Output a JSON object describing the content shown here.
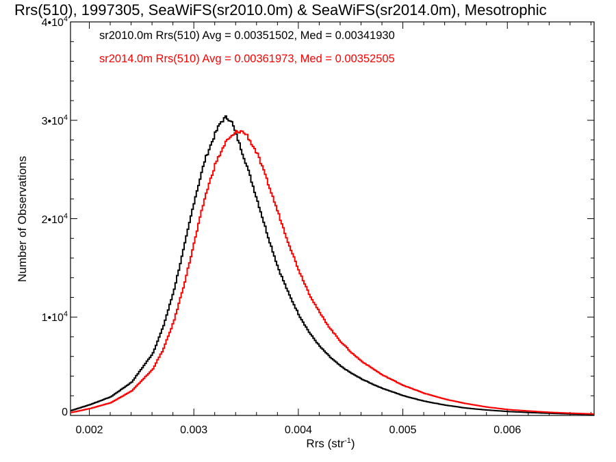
{
  "chart_data": {
    "type": "line",
    "title": "Rrs(510), 1997305, SeaWiFS(sr2010.0m) & SeaWiFS(sr2014.0m), Mesotrophic",
    "xlabel": "Rrs (str",
    "xlabel_sup": "-1",
    "xlabel_end": ")",
    "ylabel": "Number of Observations",
    "xlim": [
      0.00182,
      0.00683
    ],
    "ylim": [
      0,
      40000
    ],
    "x_ticks": [
      {
        "value": 0.002,
        "label": "0.002"
      },
      {
        "value": 0.003,
        "label": "0.003"
      },
      {
        "value": 0.004,
        "label": "0.004"
      },
      {
        "value": 0.005,
        "label": "0.005"
      },
      {
        "value": 0.006,
        "label": "0.006"
      }
    ],
    "y_ticks": [
      {
        "value": 0,
        "base": "0",
        "exp": ""
      },
      {
        "value": 10000,
        "base": "1•10",
        "exp": "4"
      },
      {
        "value": 20000,
        "base": "2•10",
        "exp": "4"
      },
      {
        "value": 30000,
        "base": "3•10",
        "exp": "4"
      },
      {
        "value": 40000,
        "base": "4•10",
        "exp": "4"
      }
    ],
    "annotations": [
      {
        "text": "sr2010.0m Rrs(510) Avg = 0.00351502, Med = 0.00341930",
        "color": "#000000"
      },
      {
        "text": "sr2014.0m Rrs(510) Avg = 0.00361973, Med = 0.00352505",
        "color": "#ff0000"
      }
    ],
    "series": [
      {
        "color": "#000000",
        "x": [
          0.00182,
          0.002,
          0.0022,
          0.0024,
          0.0026,
          0.0027,
          0.0028,
          0.0029,
          0.003,
          0.0031,
          0.0032,
          0.00325,
          0.0033,
          0.00335,
          0.0034,
          0.0035,
          0.0036,
          0.0037,
          0.0038,
          0.0039,
          0.004,
          0.0041,
          0.0042,
          0.0043,
          0.0044,
          0.0045,
          0.0046,
          0.0047,
          0.0048,
          0.005,
          0.0052,
          0.0054,
          0.0056,
          0.0058,
          0.006,
          0.0062,
          0.0064,
          0.0066,
          0.00683
        ],
        "y": [
          500,
          1100,
          1900,
          3400,
          6300,
          9000,
          12600,
          17100,
          21900,
          26000,
          28700,
          29800,
          30300,
          30000,
          28500,
          25400,
          21900,
          18300,
          15000,
          12400,
          10200,
          8400,
          7000,
          5900,
          5000,
          4300,
          3700,
          3200,
          2750,
          2000,
          1450,
          1050,
          750,
          550,
          400,
          300,
          220,
          150,
          100
        ]
      },
      {
        "color": "#ff0000",
        "x": [
          0.00182,
          0.002,
          0.0022,
          0.0024,
          0.0026,
          0.0027,
          0.0028,
          0.0029,
          0.003,
          0.0031,
          0.0032,
          0.0033,
          0.0034,
          0.00345,
          0.0035,
          0.0036,
          0.0037,
          0.0038,
          0.0039,
          0.004,
          0.0041,
          0.0042,
          0.0043,
          0.0044,
          0.0045,
          0.0046,
          0.0047,
          0.0048,
          0.005,
          0.0052,
          0.0054,
          0.0056,
          0.0058,
          0.006,
          0.0062,
          0.0064,
          0.0066,
          0.00683
        ],
        "y": [
          300,
          700,
          1300,
          2500,
          4700,
          6700,
          9500,
          13300,
          17700,
          22200,
          25600,
          27800,
          28800,
          28900,
          28500,
          26600,
          23700,
          20600,
          17500,
          14700,
          12300,
          10400,
          8800,
          7500,
          6400,
          5500,
          4800,
          4100,
          3050,
          2250,
          1650,
          1200,
          850,
          600,
          450,
          320,
          230,
          150
        ]
      }
    ]
  }
}
